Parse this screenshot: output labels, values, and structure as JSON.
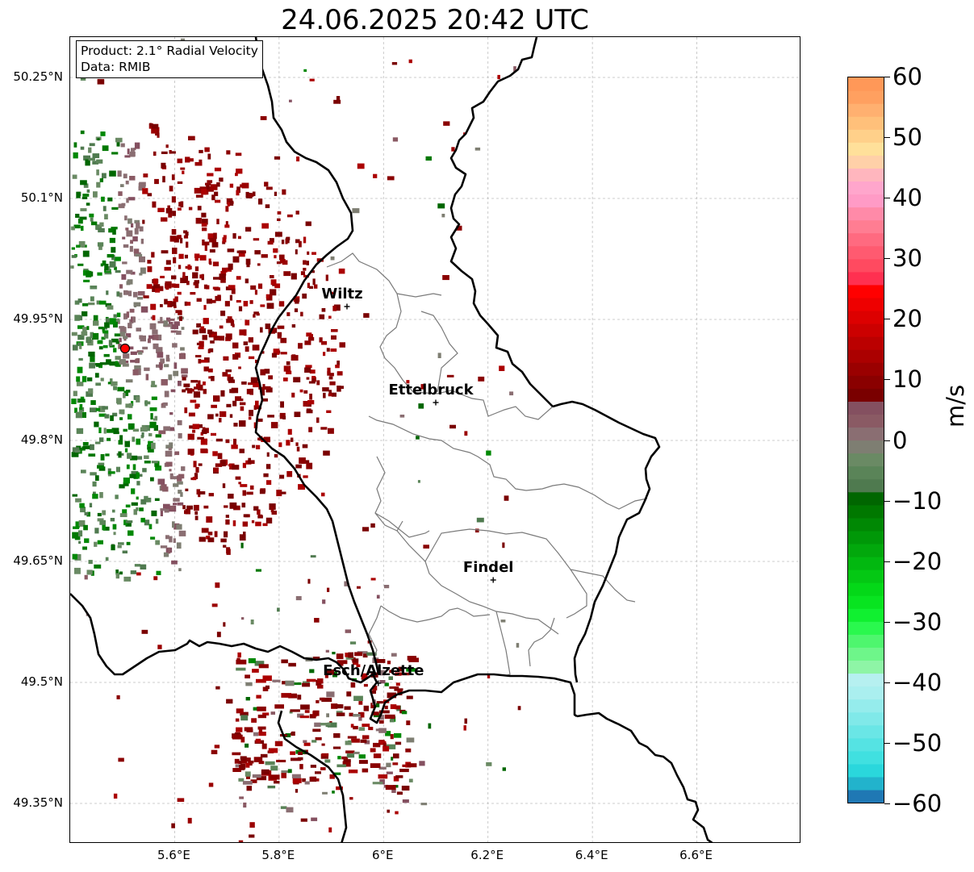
{
  "title": "24.06.2025 20:42 UTC",
  "info": {
    "product": "Product: 2.1° Radial Velocity",
    "data_source": "Data: RMIB"
  },
  "lat_labels": [
    "50.25°N",
    "50.1°N",
    "49.95°N",
    "49.8°N",
    "49.65°N",
    "49.5°N",
    "49.35°N"
  ],
  "lon_labels": [
    "5.6°E",
    "5.8°E",
    "6°E",
    "6.2°E",
    "6.4°E",
    "6.6°E"
  ],
  "cities": [
    {
      "name": "Wiltz",
      "lon": 5.93,
      "lat": 49.966
    },
    {
      "name": "Ettelbruck",
      "lon": 6.1,
      "lat": 49.847
    },
    {
      "name": "Findel",
      "lon": 6.21,
      "lat": 49.627
    },
    {
      "name": "Esch/Alzette",
      "lon": 5.99,
      "lat": 49.499
    }
  ],
  "radar_site": {
    "lon": 5.505,
    "lat": 49.914
  },
  "extent": {
    "lon": [
      5.4,
      6.8
    ],
    "lat": [
      49.3,
      50.3
    ]
  },
  "colorbar": {
    "unit": "m/s",
    "range": [
      -60,
      60
    ],
    "tick_labels": [
      "60",
      "50",
      "40",
      "30",
      "20",
      "10",
      "0",
      "−10",
      "−20",
      "−30",
      "−40",
      "−50",
      "−60"
    ],
    "colors": [
      "#1f78b4",
      "#22b3cc",
      "#2ad7dc",
      "#40e0e0",
      "#55e3e3",
      "#6ae6e6",
      "#80e9e9",
      "#95ecec",
      "#aaefef",
      "#b6f0f0",
      "#8ef5a6",
      "#6ef68a",
      "#4ef66e",
      "#2af84e",
      "#10f030",
      "#08e420",
      "#04d818",
      "#04c814",
      "#02b810",
      "#02a80c",
      "#009808",
      "#008804",
      "#007800",
      "#006600",
      "#4f7a4f",
      "#5a8458",
      "#6a8a64",
      "#7e7e72",
      "#8a6e72",
      "#8a5a64",
      "#845060",
      "#7a0000",
      "#8a0000",
      "#9a0000",
      "#ab0000",
      "#bb0000",
      "#cc0000",
      "#dd0000",
      "#ee0000",
      "#ff0000",
      "#ff3050",
      "#ff4a60",
      "#ff5a70",
      "#ff6a80",
      "#ff7d92",
      "#ff8aa8",
      "#ff9bc6",
      "#ffa6cc",
      "#ffb6be",
      "#ffd0a8",
      "#ffe09a",
      "#ffd08a",
      "#ffc07a",
      "#ffb070",
      "#ffa060",
      "#ff9858"
    ]
  }
}
